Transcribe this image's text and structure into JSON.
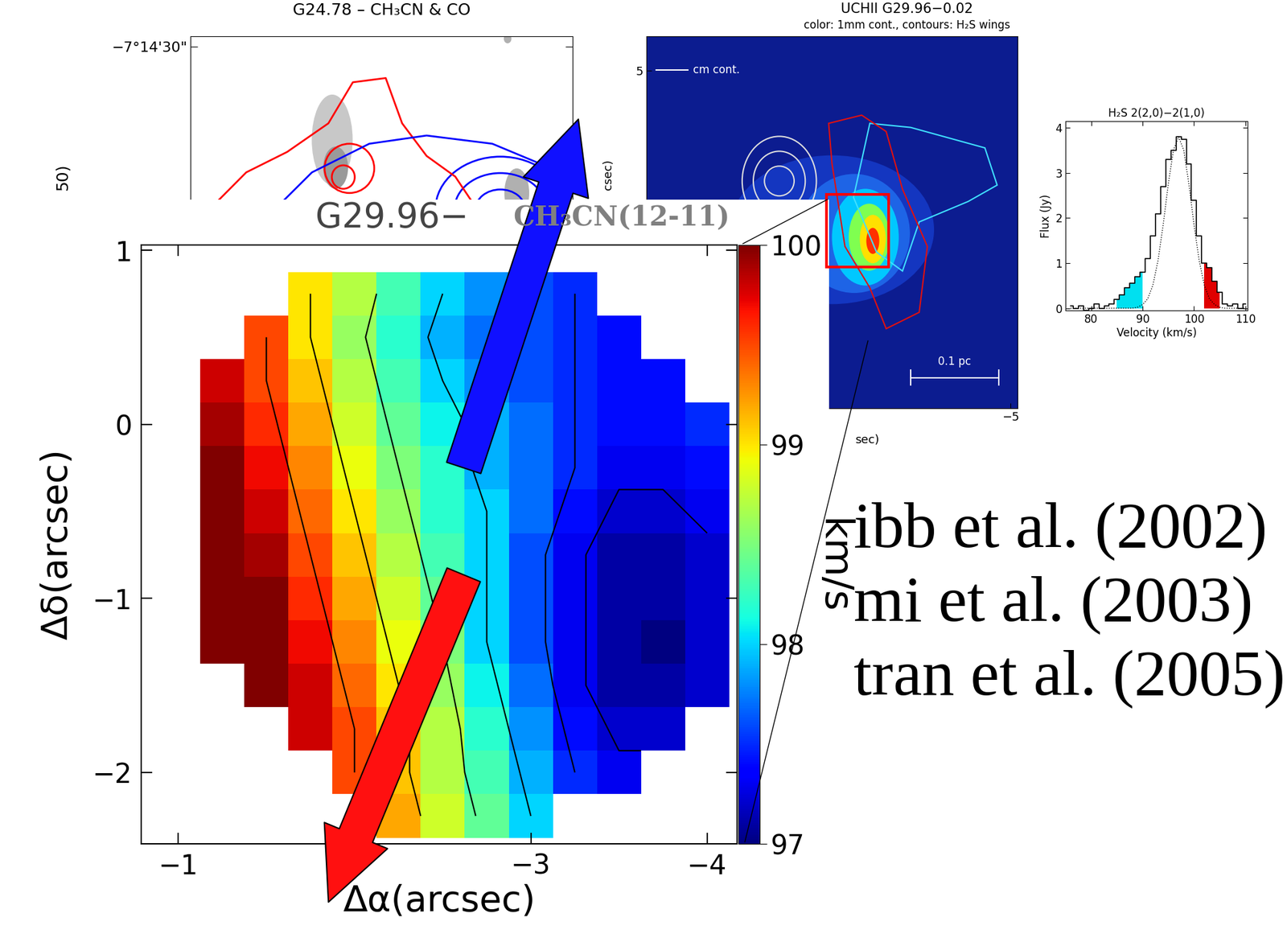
{
  "chart_data": [
    {
      "type": "contour_map",
      "title": "G24.78 – CH₃CN & CO",
      "ylabel": "50)",
      "ylim": [
        -7.24371,
        -7.24157
      ],
      "yticks": [
        {
          "value": -7.241667,
          "label": "−7°14'30\""
        }
      ],
      "tick_labels": "y"
    },
    {
      "type": "image",
      "title": "UCHII G29.96−0.02",
      "subtitle": "color: 1mm cont., contours: H₂S wings",
      "annotations": [
        "cm cont.",
        "0.1 pc"
      ],
      "xlabel": "sec)",
      "ylabel": "csec)",
      "xlim": [
        5.5,
        -5.2
      ],
      "ylim": [
        -4.8,
        6.0
      ],
      "xticks": [
        {
          "value": -5,
          "label": "−5"
        }
      ],
      "yticks": [
        5
      ]
    },
    {
      "type": "heatmap",
      "title": "G29.96−",
      "subtitle": "CH₃CN(12-11)",
      "xlabel": "Δα(arcsec)",
      "ylabel": "Δδ(arcsec)",
      "x": [
        -1.25,
        -1.5,
        -1.75,
        -2.0,
        -2.25,
        -2.5,
        -2.75,
        -3.0,
        -3.25,
        -3.5,
        -3.75,
        -4.0
      ],
      "y": [
        0.75,
        0.5,
        0.25,
        0,
        -0.25,
        -0.5,
        -0.75,
        -1.0,
        -1.25,
        -1.5,
        -1.75,
        -2.0,
        -2.25
      ],
      "values": [
        [
          null,
          null,
          99.0,
          98.7,
          98.3,
          98.0,
          97.8,
          97.6,
          97.5,
          null,
          null,
          null
        ],
        [
          null,
          99.5,
          99.0,
          98.6,
          98.2,
          97.9,
          97.7,
          97.6,
          97.5,
          97.4,
          null,
          null
        ],
        [
          99.8,
          99.5,
          99.1,
          98.7,
          98.3,
          98.0,
          97.8,
          97.6,
          97.5,
          97.4,
          97.4,
          null
        ],
        [
          99.9,
          99.6,
          99.2,
          98.8,
          98.4,
          98.1,
          97.9,
          97.7,
          97.5,
          97.4,
          97.4,
          97.5
        ],
        [
          100,
          99.7,
          99.3,
          98.9,
          98.5,
          98.2,
          97.9,
          97.7,
          97.5,
          97.3,
          97.3,
          97.4
        ],
        [
          100,
          99.8,
          99.4,
          99.0,
          98.6,
          98.2,
          98.0,
          97.7,
          97.4,
          97.2,
          97.2,
          97.3
        ],
        [
          100,
          99.9,
          99.5,
          99.1,
          98.7,
          98.3,
          98.0,
          97.6,
          97.3,
          97.1,
          97.1,
          97.2
        ],
        [
          100,
          100,
          99.6,
          99.2,
          98.8,
          98.4,
          98.0,
          97.6,
          97.3,
          97.1,
          97.1,
          97.2
        ],
        [
          100,
          100,
          99.7,
          99.3,
          98.9,
          98.5,
          98.0,
          97.6,
          97.3,
          97.1,
          97.0,
          97.2
        ],
        [
          null,
          100,
          99.8,
          99.4,
          99.0,
          98.6,
          98.1,
          97.7,
          97.3,
          97.1,
          97.1,
          97.2
        ],
        [
          null,
          null,
          99.8,
          99.5,
          99.1,
          98.7,
          98.2,
          97.8,
          97.4,
          97.2,
          97.2,
          null
        ],
        [
          null,
          null,
          null,
          99.5,
          99.1,
          98.7,
          98.3,
          97.9,
          97.5,
          97.3,
          null,
          null
        ],
        [
          null,
          null,
          null,
          null,
          99.2,
          98.8,
          98.4,
          98.0,
          null,
          null,
          null,
          null
        ]
      ],
      "contour_levels": [
        97.25,
        97.5,
        98.0,
        98.5,
        99.0,
        99.5
      ],
      "xlim": [
        -0.79,
        -4.17
      ],
      "ylim": [
        -2.41,
        1.03
      ],
      "xticks": [
        {
          "value": -1,
          "label": "−1"
        },
        {
          "value": -3,
          "label": "−3"
        },
        {
          "value": -4,
          "label": "−4"
        }
      ],
      "yticks": [
        1,
        0,
        {
          "value": -1,
          "label": "−1"
        },
        {
          "value": -2,
          "label": "−2"
        }
      ],
      "colorbar": {
        "label": "km/s",
        "range": [
          97,
          100
        ],
        "ticks": [
          97,
          98,
          99,
          100
        ]
      },
      "annotations": [
        "ibb et al. (2002)",
        "mi et al. (2003)",
        "tran et al. (2005)"
      ]
    },
    {
      "type": "line",
      "title": "H₂S 2(2,0)−2(1,0)",
      "xlabel": "Velocity (km/s)",
      "ylabel": "Flux (Jy)",
      "x": [
        76,
        77,
        78,
        79,
        80,
        81,
        82,
        83,
        84,
        85,
        86,
        87,
        88,
        89,
        90,
        91,
        92,
        93,
        94,
        95,
        96,
        97,
        98,
        99,
        100,
        101,
        102,
        103,
        104,
        105,
        106,
        107,
        108,
        109,
        110
      ],
      "series": [
        {
          "color": "#000000",
          "line_style": "steps",
          "values": [
            0.05,
            0.0,
            0.05,
            -0.05,
            0.0,
            0.1,
            0.0,
            0.05,
            0.1,
            0.2,
            0.3,
            0.45,
            0.55,
            0.7,
            0.8,
            1.1,
            1.6,
            2.1,
            2.7,
            3.3,
            3.5,
            3.8,
            3.75,
            3.2,
            2.4,
            1.6,
            1.0,
            0.9,
            0.6,
            0.35,
            0.1,
            0.05,
            0.1,
            0.0,
            0.1
          ]
        },
        {
          "color": "#000000",
          "line_style": "dotted",
          "values": [
            0,
            0,
            0,
            0,
            0,
            0,
            0,
            0,
            0,
            0,
            0,
            0,
            0,
            0.02,
            0.08,
            0.21,
            0.51,
            1.06,
            1.85,
            2.76,
            3.51,
            3.8,
            3.51,
            2.76,
            1.85,
            1.06,
            0.51,
            0.21,
            0.08,
            0.02,
            0,
            0,
            0,
            0,
            0
          ]
        }
      ],
      "wings": [
        {
          "range": [
            85,
            90
          ],
          "color": "#00e0f0"
        },
        {
          "range": [
            102,
            105
          ],
          "color": "#e00000"
        }
      ],
      "xlim": [
        75,
        110.4
      ],
      "ylim": [
        -0.05,
        4.15
      ],
      "xticks": [
        80,
        90,
        100,
        110
      ],
      "yticks": [
        0,
        1,
        2,
        3,
        4
      ]
    }
  ]
}
